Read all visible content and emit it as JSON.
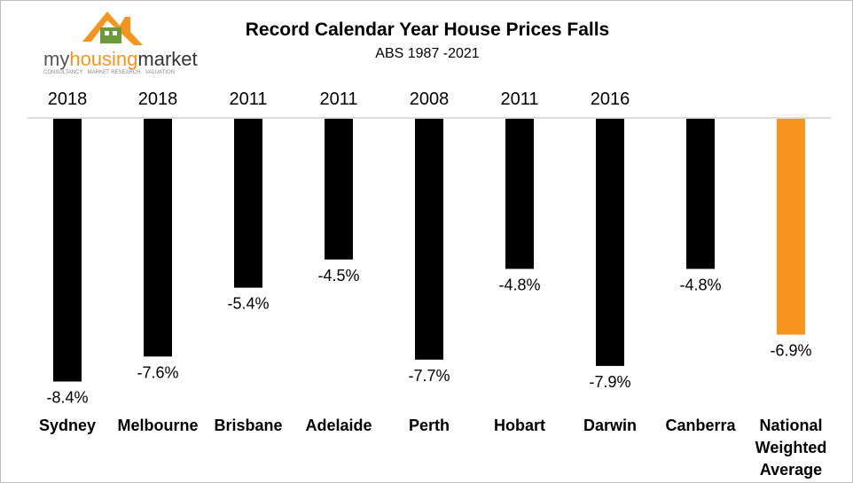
{
  "logo": {
    "brand_light": "my",
    "brand_bold": "housing",
    "brand_dark": "market",
    "tagline": "CONSULTANCY · MARKET RESEARCH · VALUATION",
    "roof_color": "#f7941d",
    "house_color": "#6a9a3a"
  },
  "chart_data": {
    "type": "bar",
    "title": "Record Calendar Year House Prices Falls",
    "subtitle": "ABS 1987 -2021",
    "categories": [
      [
        "Sydney"
      ],
      [
        "Melbourne"
      ],
      [
        "Brisbane"
      ],
      [
        "Adelaide"
      ],
      [
        "Perth"
      ],
      [
        "Hobart"
      ],
      [
        "Darwin"
      ],
      [
        "Canberra"
      ],
      [
        "National",
        "Weighted",
        "Average"
      ]
    ],
    "years": [
      "2018",
      "2018",
      "2011",
      "2011",
      "2008",
      "2011",
      "2016",
      "",
      ""
    ],
    "values": [
      -8.4,
      -7.6,
      -5.4,
      -4.5,
      -7.7,
      -4.8,
      -7.9,
      -4.8,
      -6.9
    ],
    "value_labels": [
      "-8.4%",
      "-7.6%",
      "-5.4%",
      "-4.5%",
      "-7.7%",
      "-4.8%",
      "-7.9%",
      "-4.8%",
      "-6.9%"
    ],
    "bar_colors": [
      "#000000",
      "#000000",
      "#000000",
      "#000000",
      "#000000",
      "#000000",
      "#000000",
      "#000000",
      "#f7941d"
    ],
    "ylim": [
      -10,
      0
    ],
    "xlabel": "",
    "ylabel": "",
    "legend": "none",
    "grid": false
  }
}
